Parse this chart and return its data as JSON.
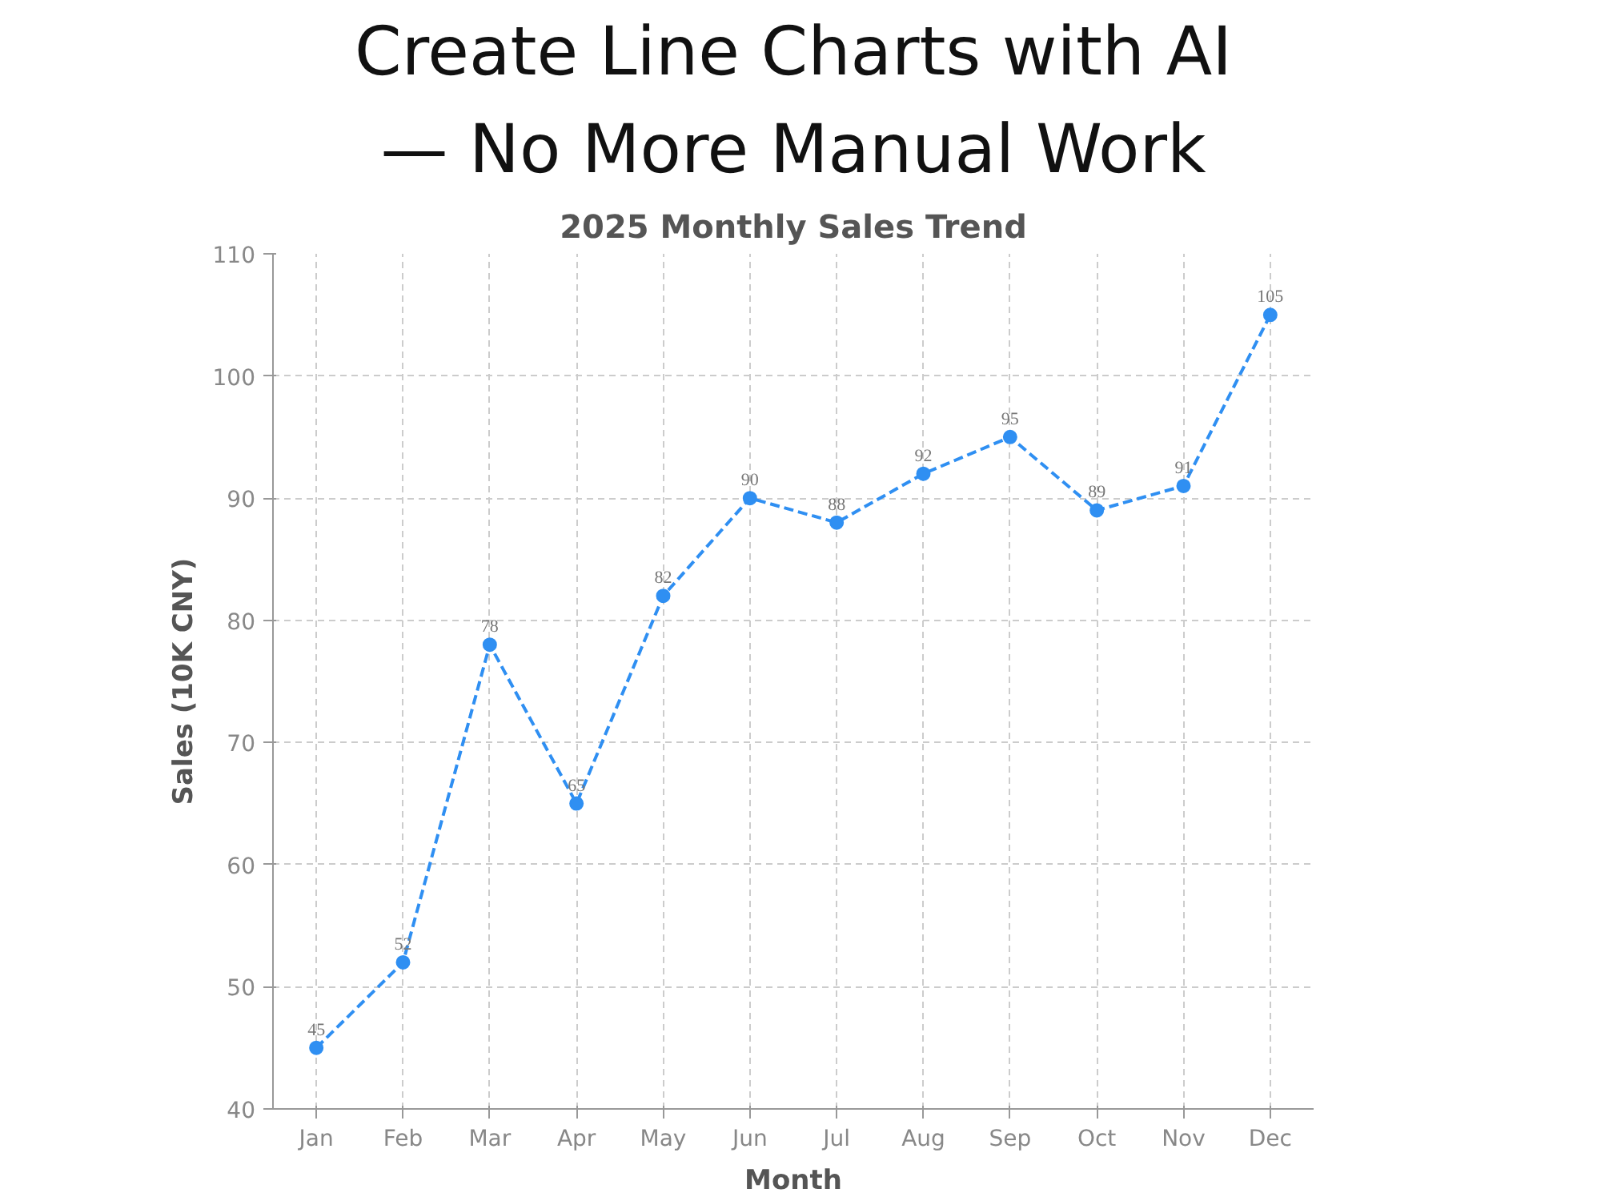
{
  "chart_data": {
    "type": "line",
    "title": "2025 Monthly Sales Trend",
    "annotations": [
      "Create Line Charts with AI",
      "— No More Manual Work"
    ],
    "xlabel": "Month",
    "ylabel": "Sales (10K CNY)",
    "categories": [
      "Jan",
      "Feb",
      "Mar",
      "Apr",
      "May",
      "Jun",
      "Jul",
      "Aug",
      "Sep",
      "Oct",
      "Nov",
      "Dec"
    ],
    "series": [
      {
        "color": "#2f8ff2",
        "values": [
          45,
          52,
          78,
          65,
          82,
          90,
          88,
          92,
          95,
          89,
          91,
          105
        ]
      }
    ],
    "ylim": [
      40,
      110
    ],
    "yticks": [
      40,
      50,
      60,
      70,
      80,
      90,
      100,
      110
    ],
    "grid": true,
    "marker": "circle",
    "line_style": "dashed",
    "data_labels": true
  }
}
